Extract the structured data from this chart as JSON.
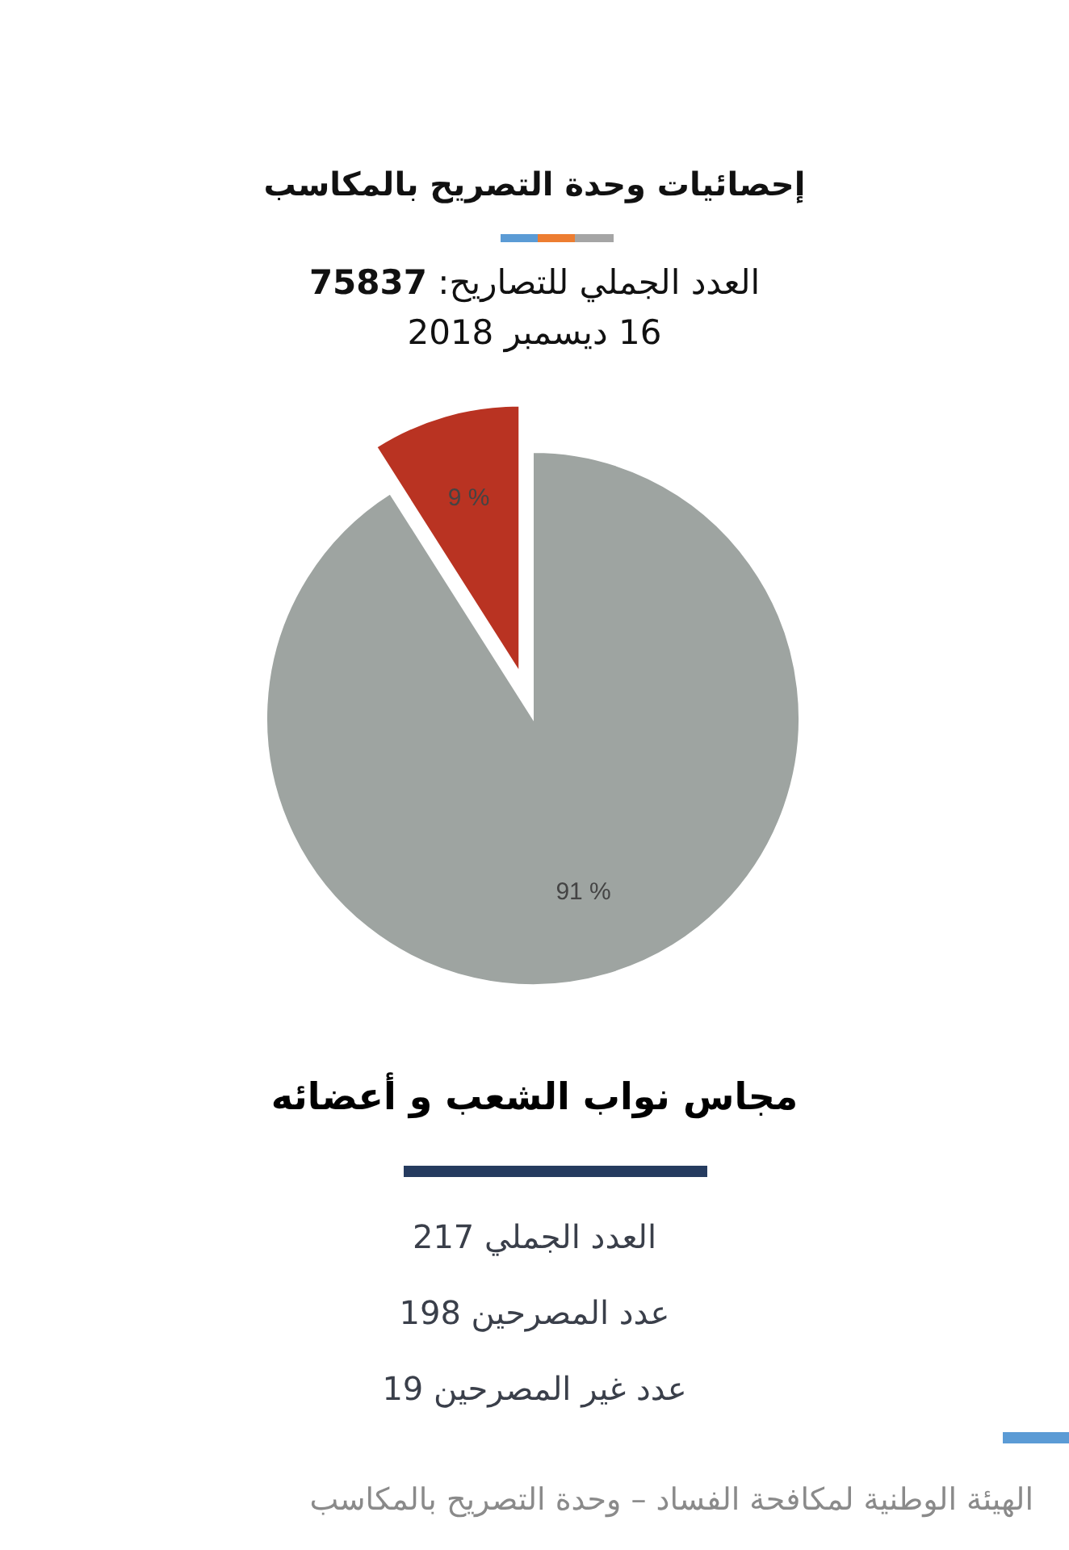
{
  "chart_data": {
    "type": "pie",
    "title": "إحصائيات وحدة التصريح بالمكاسب",
    "subtitle": "العدد الجملي للتصاريح: **75837**",
    "categories": [
      null,
      null
    ],
    "values": [
      91,
      9
    ],
    "colors": [
      "#9ea4a1",
      "#b93322"
    ],
    "value_labels": [
      "91 %",
      "9 %"
    ],
    "annotations": [
      "16 ديسمبر 2018",
      "مجاس نواب الشعب و أعضائه",
      "العدد الجملي 217",
      "عدد المصرحين 198",
      "عدد غير المصرحين 19",
      "الهيئة الوطنية لمكافحة الفساد – وحدة التصريح بالمكاسب"
    ]
  }
}
